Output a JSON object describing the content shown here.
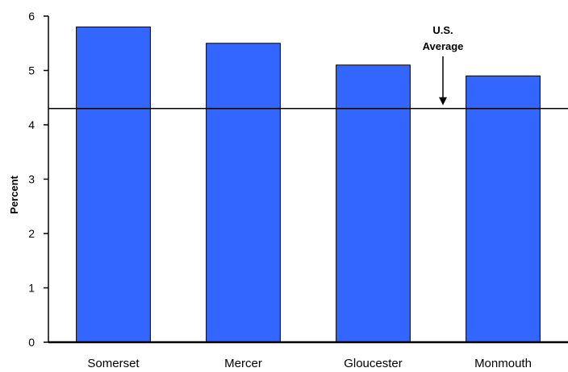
{
  "chart_data": {
    "type": "bar",
    "title": "",
    "xlabel": "",
    "ylabel": "Percent",
    "categories": [
      "Somerset",
      "Mercer",
      "Gloucester",
      "Monmouth"
    ],
    "values": [
      5.8,
      5.5,
      5.1,
      4.9
    ],
    "ylim": [
      0,
      6
    ],
    "yticks": [
      "0",
      "1",
      "2",
      "3",
      "4",
      "5",
      "6"
    ],
    "bar_color": "#3366ff",
    "reference_line": {
      "value": 4.3,
      "label_line1": "U.S.",
      "label_line2": "Average"
    },
    "grid": false,
    "legend": "none"
  }
}
